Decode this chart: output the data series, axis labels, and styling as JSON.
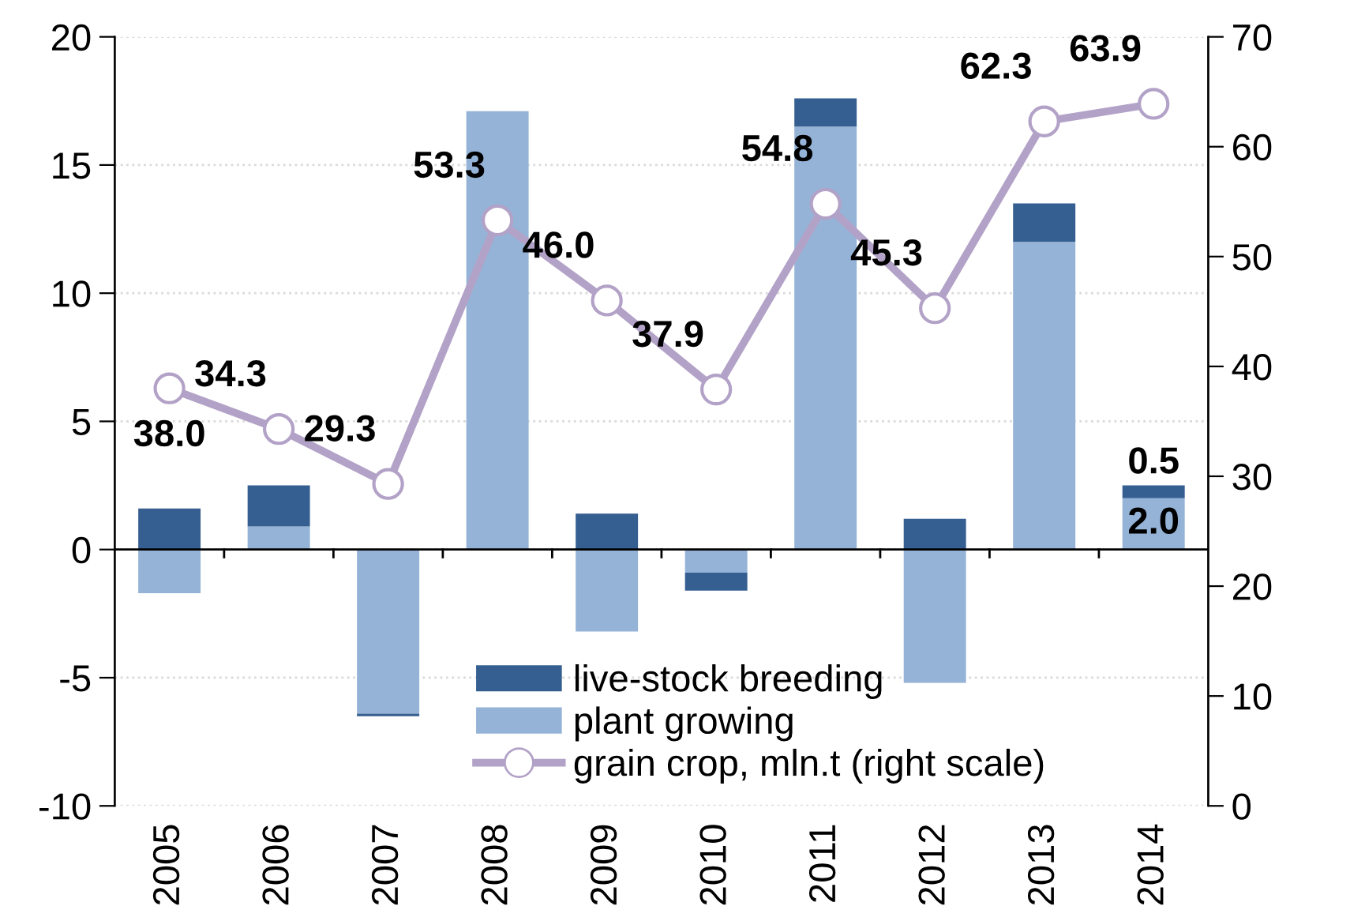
{
  "chart_data": {
    "type": "bar",
    "stacked": true,
    "categories": [
      "2005",
      "2006",
      "2007",
      "2008",
      "2009",
      "2010",
      "2011",
      "2012",
      "2013",
      "2014"
    ],
    "series": [
      {
        "name": "plant growing",
        "color": "#95b3d7",
        "values": [
          -1.7,
          0.9,
          -6.4,
          17.1,
          -3.2,
          -0.9,
          16.5,
          -5.2,
          12.0,
          2.0
        ],
        "value_labels": [
          null,
          null,
          null,
          null,
          null,
          null,
          null,
          null,
          null,
          "2.0"
        ]
      },
      {
        "name": "live-stock breeding",
        "color": "#365f91",
        "values": [
          1.6,
          1.6,
          -0.1,
          0.0,
          1.4,
          -0.7,
          1.1,
          1.2,
          1.5,
          0.5
        ],
        "value_labels": [
          null,
          null,
          null,
          null,
          null,
          null,
          null,
          null,
          null,
          "0.5"
        ]
      },
      {
        "name": "grain crop, mln.t (right scale)",
        "type": "line",
        "axis": "y2",
        "color": "#b3a2c7",
        "marker": "circle",
        "values": [
          38.0,
          34.3,
          29.3,
          53.3,
          46.0,
          37.9,
          54.8,
          45.3,
          62.3,
          63.9
        ],
        "value_labels": [
          "38.0",
          "34.3",
          "29.3",
          "53.3",
          "46.0",
          "37.9",
          "54.8",
          "45.3",
          "62.3",
          "63.9"
        ]
      }
    ],
    "ylim": [
      -10,
      20
    ],
    "yticks": [
      -10,
      -5,
      0,
      5,
      10,
      15,
      20
    ],
    "y2lim": [
      0,
      70
    ],
    "y2ticks": [
      0,
      10,
      20,
      30,
      40,
      50,
      60,
      70
    ],
    "grid": "y",
    "legend": "bottom right"
  }
}
